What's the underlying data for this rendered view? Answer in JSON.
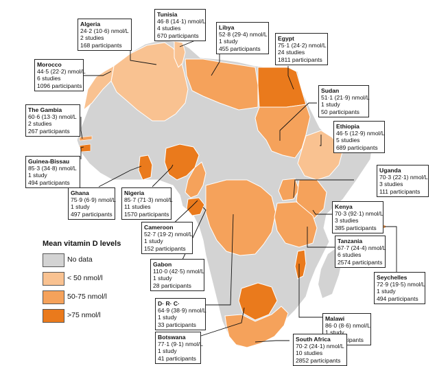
{
  "legend": {
    "title": "Mean vitamin D levels",
    "items": [
      {
        "label": "No data",
        "color": "#d3d3d3"
      },
      {
        "label": "< 50 nmol/l",
        "color": "#f9c291"
      },
      {
        "label": "50-75 nmol/l",
        "color": "#f5a25b"
      },
      {
        "label": ">75 nmol/l",
        "color": "#ea7a1c"
      }
    ]
  },
  "countries": [
    {
      "name": "Algeria",
      "mean": "24·2 (10·6) nmol/L",
      "studies": "2 studies",
      "participants": "168 participants",
      "level": "<50"
    },
    {
      "name": "Tunisia",
      "mean": "46·8 (14·1) nmol/L",
      "studies": "4 studies",
      "participants": "670 participants",
      "level": "<50"
    },
    {
      "name": "Libya",
      "mean": "52·8 (29·4) nmol/L",
      "studies": "1 study",
      "participants": "455 participants",
      "level": "50-75"
    },
    {
      "name": "Egypt",
      "mean": "75·1 (24·2) nmol/L",
      "studies": "24 studies",
      "participants": "1811 participants",
      "level": ">75"
    },
    {
      "name": "Morocco",
      "mean": "44·5 (22·2) nmol/L",
      "studies": "6 studies",
      "participants": "1096 participants",
      "level": "<50"
    },
    {
      "name": "Sudan",
      "mean": "51·1 (21·9) nmol/L",
      "studies": "1 study",
      "participants": "50 participants",
      "level": "50-75"
    },
    {
      "name": "The Gambia",
      "mean": "60·6 (13·3) nmol/L",
      "studies": "2 studies",
      "participants": "267 participants",
      "level": "50-75"
    },
    {
      "name": "Ethiopia",
      "mean": "46·5 (12·9) nmol/L",
      "studies": "5 studies",
      "participants": "689 participants",
      "level": "<50"
    },
    {
      "name": "Guinea-Bissau",
      "mean": "85·3 (34·8) nmol/L",
      "studies": "1 study",
      "participants": "494 participants",
      "level": ">75"
    },
    {
      "name": "Uganda",
      "mean": "70·3 (22·1) nmol/L",
      "studies": "3 studies",
      "participants": "111 participants",
      "level": "50-75"
    },
    {
      "name": "Ghana",
      "mean": "75·9 (6·9) nmol/L",
      "studies": "1 study",
      "participants": "497 participants",
      "level": ">75"
    },
    {
      "name": "Nigeria",
      "mean": "85·7 (71·3) nmol/L",
      "studies": "11 studies",
      "participants": "1570 participants",
      "level": ">75"
    },
    {
      "name": "Kenya",
      "mean": "70·3 (92·1) nmol/L",
      "studies": "3 studies",
      "participants": "385 participants",
      "level": "50-75"
    },
    {
      "name": "Cameroon",
      "mean": "52·7 (19·2) nmol/L",
      "studies": "1 study",
      "participants": "152 participants",
      "level": "50-75"
    },
    {
      "name": "Tanzania",
      "mean": "67·7 (24·4) nmol/L",
      "studies": "6 studies",
      "participants": "2574 participants",
      "level": "50-75"
    },
    {
      "name": "Gabon",
      "mean": "110·0 (42·5) nmol/L",
      "studies": "1 study",
      "participants": "28 participants",
      "level": ">75"
    },
    {
      "name": "Seychelles",
      "mean": "72·9 (19·5) nmol/L",
      "studies": "1 study",
      "participants": "494 participants",
      "level": "50-75"
    },
    {
      "name": "D· R· C·",
      "mean": "64·9 (38·9) nmol/L",
      "studies": "1 study",
      "participants": "33 participants",
      "level": "50-75"
    },
    {
      "name": "Malawi",
      "mean": "86·0 (8·6) nmol/L",
      "studies": "1 study",
      "participants": "42 participants",
      "level": ">75"
    },
    {
      "name": "Botswana",
      "mean": "77·1 (9·1) nmol/L",
      "studies": "1 study",
      "participants": "41 participants",
      "level": ">75"
    },
    {
      "name": "South Africa",
      "mean": "70·2 (24·1) nmol/L",
      "studies": "10 studies",
      "participants": "2852 participants",
      "level": "50-75"
    }
  ]
}
